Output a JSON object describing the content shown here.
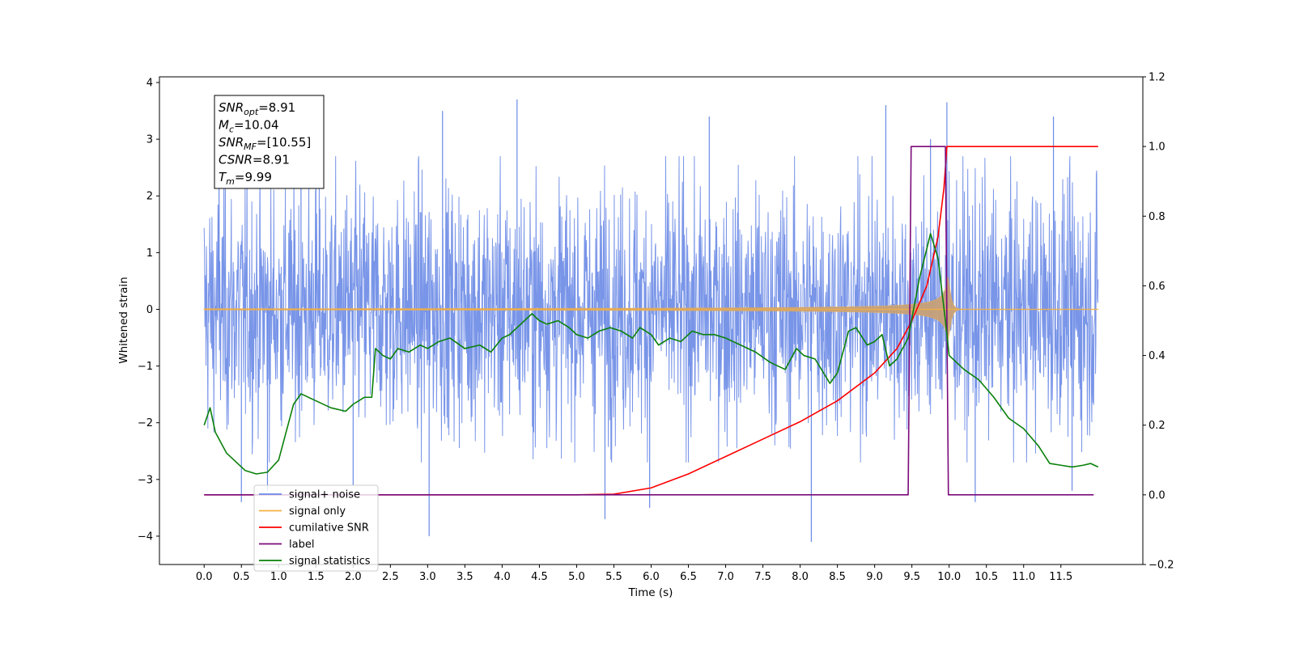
{
  "chart_data": {
    "type": "line",
    "xlabel": "Time (s)",
    "ylabel": "Whitened strain",
    "xlim": [
      -0.6,
      12.6
    ],
    "ylim": [
      -4.5,
      4.1
    ],
    "y2lim": [
      -0.2,
      1.2
    ],
    "x_ticks": [
      "0.0",
      "0.5",
      "1.0",
      "1.5",
      "2.0",
      "2.5",
      "3.0",
      "3.5",
      "4.0",
      "4.5",
      "5.0",
      "5.5",
      "6.0",
      "6.5",
      "7.0",
      "7.5",
      "8.0",
      "8.5",
      "9.0",
      "9.5",
      "10.0",
      "10.5",
      "11.0",
      "11.5"
    ],
    "y_ticks": [
      "4",
      "3",
      "2",
      "1",
      "0",
      "−1",
      "−2",
      "−3",
      "−4"
    ],
    "y2_ticks": [
      "1.2",
      "1.0",
      "0.8",
      "0.6",
      "0.4",
      "0.2",
      "0.0",
      "−0.2"
    ],
    "annotation": [
      {
        "symbol": "SNR",
        "sub": "opt",
        "text": "=8.91"
      },
      {
        "symbol": "M",
        "sub": "c",
        "text": "=10.04"
      },
      {
        "symbol": "SNR",
        "sub": "MF",
        "text": "=[10.55]"
      },
      {
        "symbol": "CSNR",
        "sub": "",
        "text": "=8.91"
      },
      {
        "symbol": "T",
        "sub": "m",
        "text": "=9.99"
      }
    ],
    "legend_position": "lower-left",
    "series": [
      {
        "name": "signal+ noise",
        "color": "#6a8ae6",
        "axis": "left",
        "kind": "noise",
        "x_range": [
          0.0,
          12.0
        ],
        "typical_amplitude": 1.2,
        "peak_amplitude": 3.7,
        "spikes": [
          [
            0.2,
            3.5
          ],
          [
            0.5,
            -3.4
          ],
          [
            0.85,
            -3.2
          ],
          [
            1.3,
            3.3
          ],
          [
            1.5,
            3.3
          ],
          [
            2.0,
            -3.1
          ],
          [
            3.02,
            -4.0
          ],
          [
            3.2,
            3.5
          ],
          [
            4.2,
            3.7
          ],
          [
            5.38,
            -3.7
          ],
          [
            5.98,
            -3.5
          ],
          [
            6.78,
            3.4
          ],
          [
            8.15,
            -4.1
          ],
          [
            9.15,
            3.6
          ],
          [
            9.75,
            3.0
          ],
          [
            9.97,
            3.65
          ],
          [
            10.35,
            -3.4
          ],
          [
            11.4,
            3.4
          ],
          [
            11.65,
            -3.2
          ]
        ]
      },
      {
        "name": "signal only",
        "color": "#f5b041",
        "axis": "left",
        "kind": "chirp",
        "x_range": [
          0.0,
          12.0
        ],
        "peak_time": 9.99,
        "peak_amplitude": 0.65
      },
      {
        "name": "cumilative SNR",
        "color": "#ff0000",
        "axis": "right",
        "x": [
          0,
          5.0,
          5.5,
          6.0,
          6.5,
          7.0,
          7.5,
          8.0,
          8.5,
          9.0,
          9.3,
          9.5,
          9.7,
          9.85,
          9.93,
          9.97,
          12.0
        ],
        "y": [
          0,
          0.0,
          0.002,
          0.02,
          0.06,
          0.11,
          0.16,
          0.21,
          0.27,
          0.35,
          0.42,
          0.5,
          0.6,
          0.74,
          0.88,
          1.0,
          1.0
        ]
      },
      {
        "name": "label",
        "color": "#7b0a7b",
        "axis": "right",
        "x": [
          0.0,
          9.45,
          9.49,
          9.95,
          9.99,
          11.94
        ],
        "y": [
          0.0,
          0.0,
          1.0,
          1.0,
          0.0,
          0.0
        ]
      },
      {
        "name": "signal statistics",
        "color": "#0a800a",
        "axis": "right",
        "x": [
          0,
          0.08,
          0.15,
          0.3,
          0.45,
          0.55,
          0.7,
          0.85,
          1.0,
          1.1,
          1.2,
          1.3,
          1.5,
          1.7,
          1.9,
          2.0,
          2.15,
          2.25,
          2.3,
          2.4,
          2.5,
          2.6,
          2.75,
          2.9,
          3.0,
          3.15,
          3.3,
          3.5,
          3.7,
          3.85,
          4.0,
          4.1,
          4.25,
          4.4,
          4.5,
          4.6,
          4.75,
          4.9,
          5.0,
          5.15,
          5.3,
          5.45,
          5.6,
          5.75,
          5.85,
          6.0,
          6.1,
          6.25,
          6.4,
          6.55,
          6.7,
          6.85,
          7.0,
          7.2,
          7.4,
          7.6,
          7.8,
          7.95,
          8.05,
          8.2,
          8.4,
          8.5,
          8.65,
          8.75,
          8.9,
          9.0,
          9.1,
          9.2,
          9.3,
          9.45,
          9.6,
          9.75,
          9.85,
          9.95,
          10.0,
          10.1,
          10.2,
          10.4,
          10.6,
          10.8,
          11.0,
          11.2,
          11.35,
          11.5,
          11.65,
          11.8,
          11.9,
          12.0
        ],
        "y": [
          0.2,
          0.25,
          0.18,
          0.12,
          0.09,
          0.07,
          0.06,
          0.065,
          0.1,
          0.18,
          0.26,
          0.29,
          0.27,
          0.25,
          0.24,
          0.26,
          0.28,
          0.28,
          0.42,
          0.4,
          0.39,
          0.42,
          0.41,
          0.43,
          0.42,
          0.44,
          0.45,
          0.42,
          0.43,
          0.41,
          0.45,
          0.46,
          0.49,
          0.52,
          0.5,
          0.49,
          0.5,
          0.48,
          0.46,
          0.45,
          0.47,
          0.48,
          0.47,
          0.45,
          0.48,
          0.46,
          0.43,
          0.45,
          0.44,
          0.47,
          0.46,
          0.46,
          0.45,
          0.43,
          0.41,
          0.38,
          0.36,
          0.42,
          0.4,
          0.39,
          0.32,
          0.35,
          0.47,
          0.48,
          0.43,
          0.44,
          0.46,
          0.37,
          0.39,
          0.45,
          0.62,
          0.75,
          0.68,
          0.5,
          0.4,
          0.38,
          0.36,
          0.33,
          0.28,
          0.22,
          0.19,
          0.14,
          0.09,
          0.085,
          0.08,
          0.085,
          0.09,
          0.08
        ]
      }
    ]
  }
}
